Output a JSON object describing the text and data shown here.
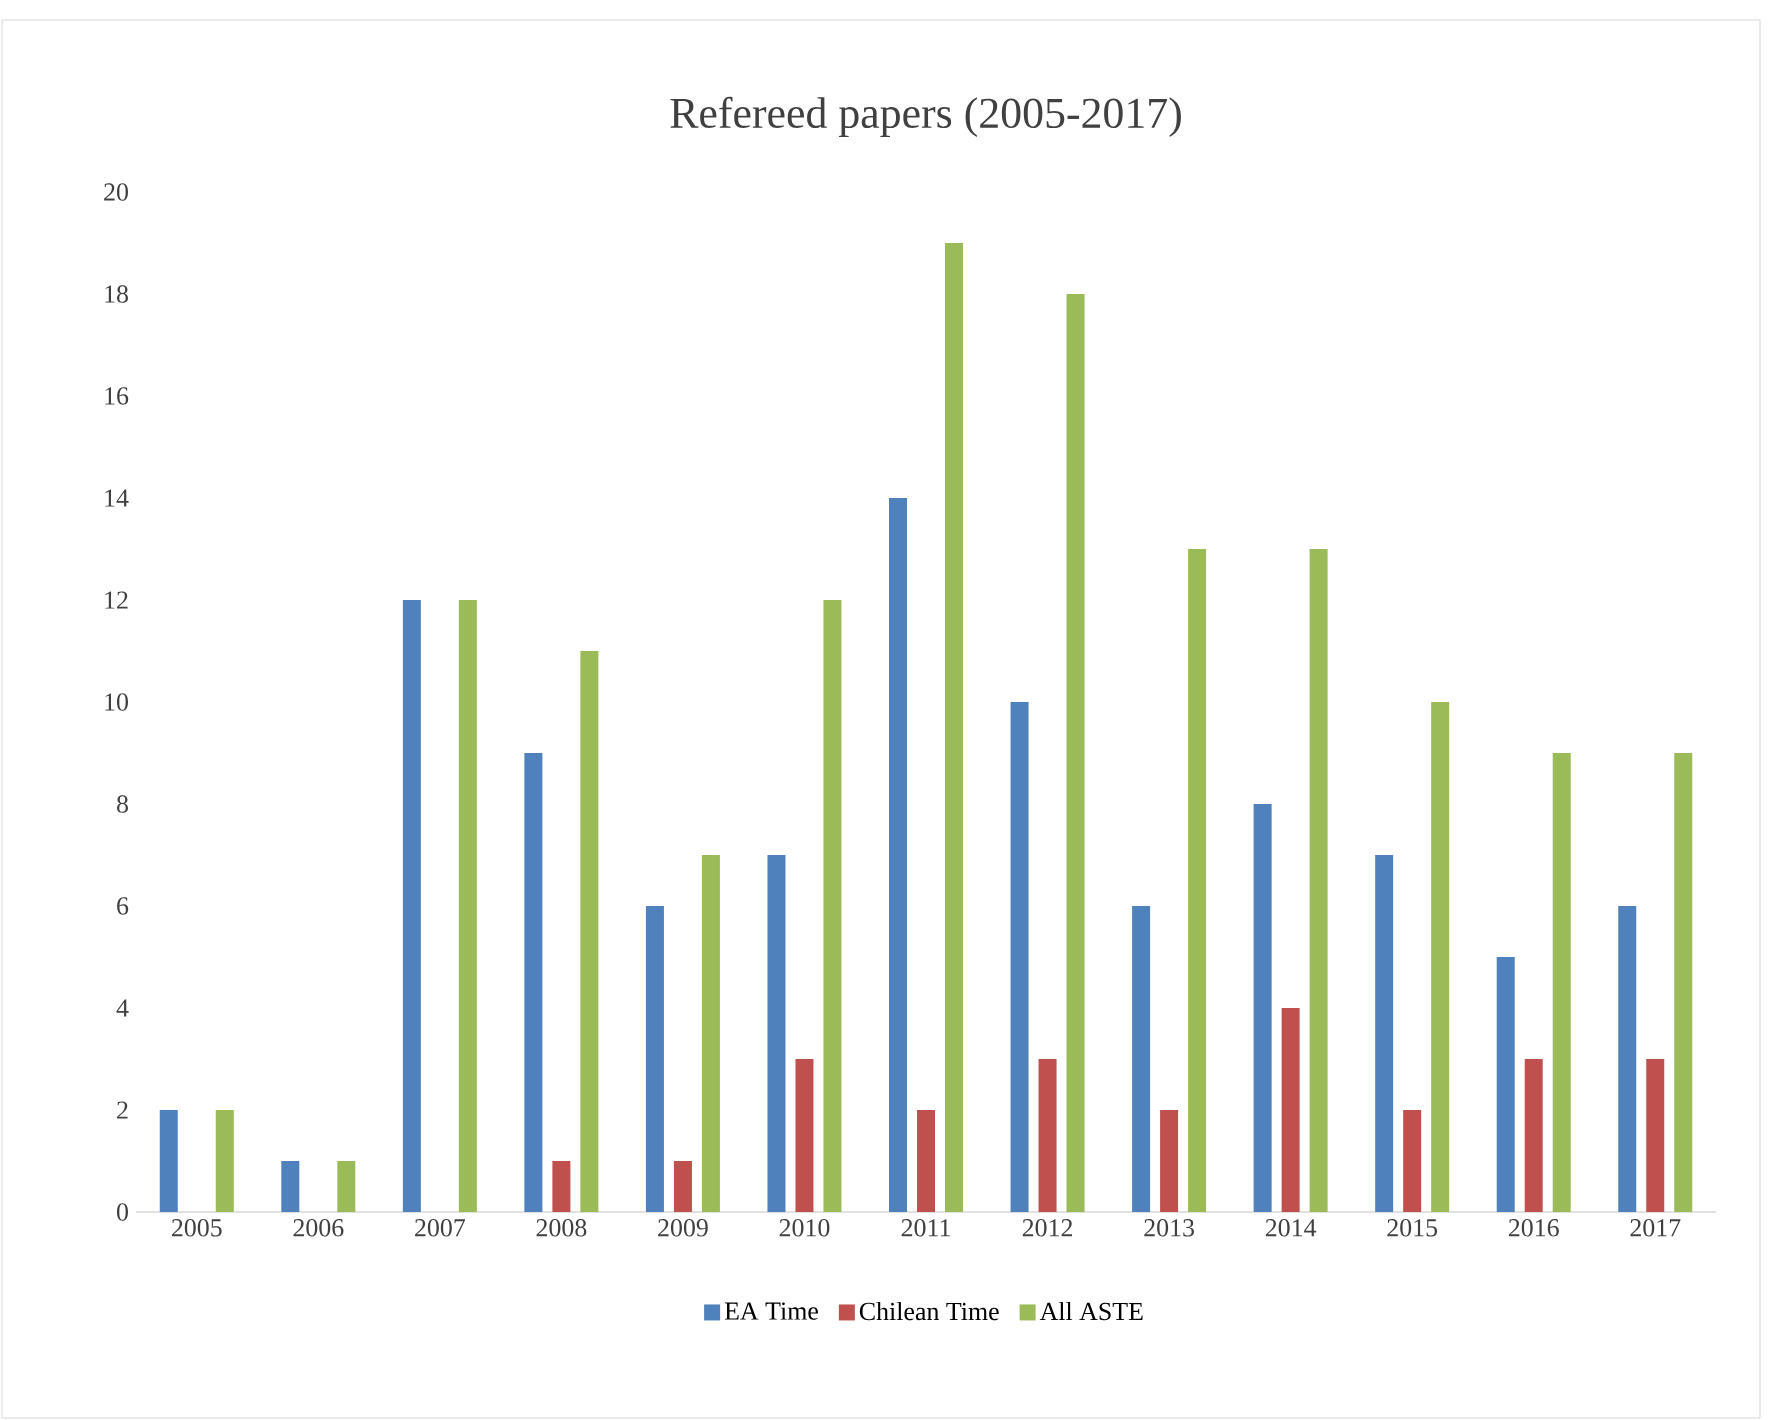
{
  "chart_data": {
    "type": "bar",
    "title": "Refereed papers (2005-2017)",
    "categories": [
      "2005",
      "2006",
      "2007",
      "2008",
      "2009",
      "2010",
      "2011",
      "2012",
      "2013",
      "2014",
      "2015",
      "2016",
      "2017"
    ],
    "series": [
      {
        "name": "EA Time",
        "color": "#4f81bd",
        "values": [
          2,
          1,
          12,
          9,
          6,
          7,
          14,
          10,
          6,
          8,
          7,
          5,
          6
        ]
      },
      {
        "name": "Chilean Time",
        "color": "#c0504d",
        "values": [
          0,
          0,
          0,
          1,
          1,
          3,
          2,
          3,
          2,
          4,
          2,
          3,
          3
        ]
      },
      {
        "name": "All ASTE",
        "color": "#9bbb59",
        "values": [
          2,
          1,
          12,
          11,
          7,
          12,
          19,
          18,
          13,
          13,
          10,
          9,
          9
        ]
      }
    ],
    "ylim": [
      0,
      20
    ],
    "yticks": [
      0,
      2,
      4,
      6,
      8,
      10,
      12,
      14,
      16,
      18,
      20
    ],
    "grid": false,
    "legend": "bottom"
  }
}
